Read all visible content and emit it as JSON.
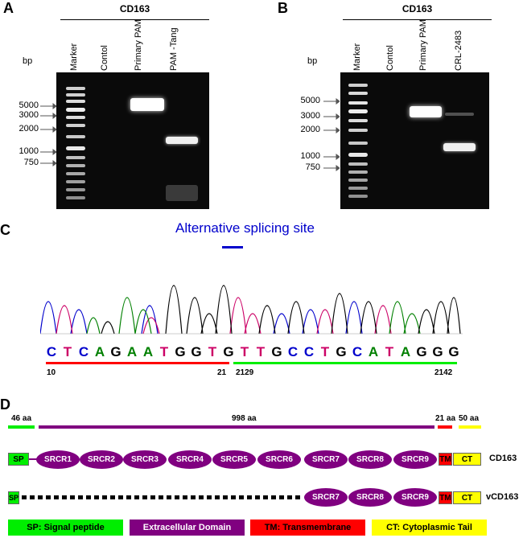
{
  "panelA": {
    "letter": "A",
    "title": "CD163",
    "bp": "bp",
    "lanes": [
      "Marker",
      "Contol",
      "Primary PAM",
      "PAM -Tang"
    ],
    "sizes": [
      "5000",
      "3000",
      "2000",
      "1000",
      "750"
    ]
  },
  "panelB": {
    "letter": "B",
    "title": "CD163",
    "bp": "bp",
    "lanes": [
      "Marker",
      "Contol",
      "Primary PAM",
      "CRL-2483"
    ],
    "sizes": [
      "5000",
      "3000",
      "2000",
      "1000",
      "750"
    ]
  },
  "panelC": {
    "letter": "C",
    "splice_label": "Alternative splicing site",
    "bases": [
      "C",
      "T",
      "C",
      "A",
      "G",
      "A",
      "A",
      "T",
      "G",
      "G",
      "T",
      "G",
      "T",
      "T",
      "G",
      "C",
      "C",
      "T",
      "G",
      "C",
      "A",
      "T",
      "A",
      "G",
      "G",
      "G"
    ],
    "start_left": "10",
    "end_left": "21",
    "start_right": "2129",
    "end_right": "2142",
    "colors": {
      "A": "#008000",
      "C": "#0000cc",
      "G": "#000000",
      "T": "#cc0066"
    }
  },
  "panelD": {
    "letter": "D",
    "lengths": {
      "sp": "46 aa",
      "ext": "998 aa",
      "tm": "21 aa",
      "ct": "50 aa"
    },
    "cd163": {
      "name": "CD163",
      "sp": "SP",
      "domains": [
        "SRCR1",
        "SRCR2",
        "SRCR3",
        "SRCR4",
        "SRCR5",
        "SRCR6",
        "SRCR7",
        "SRCR8",
        "SRCR9"
      ],
      "tm": "TM",
      "ct": "CT"
    },
    "vcd163": {
      "name": "vCD163",
      "sp": "SP",
      "domains": [
        "SRCR7",
        "SRCR8",
        "SRCR9"
      ],
      "tm": "TM",
      "ct": "CT"
    },
    "legend": {
      "sp": "SP:  Signal peptide",
      "ext": "Extracellular Domain",
      "tm": "TM: Transmembrane",
      "ct": "CT: Cytoplasmic Tail"
    },
    "colors": {
      "sp": "#00ee00",
      "ext": "#800080",
      "tm": "#ff0000",
      "ct": "#ffff00"
    }
  }
}
